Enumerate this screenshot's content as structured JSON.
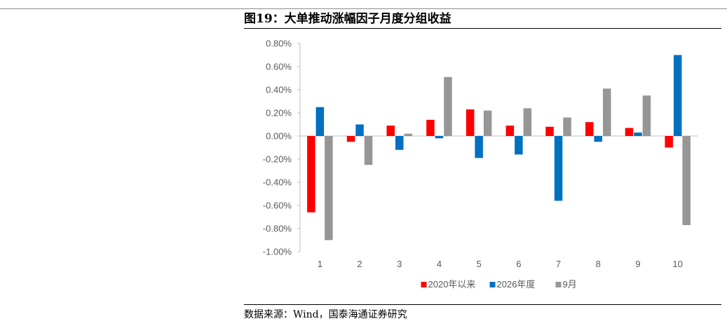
{
  "figure": {
    "title": "图19：大单推动涨幅因子月度分组收益",
    "source": "数据来源：Wind，国泰海通证券研究"
  },
  "chart_data": {
    "type": "bar",
    "categories": [
      "1",
      "2",
      "3",
      "4",
      "5",
      "6",
      "7",
      "8",
      "9",
      "10"
    ],
    "series": [
      {
        "name": "2020年以来",
        "color": "#ff0000",
        "values": [
          -0.66,
          -0.05,
          0.09,
          0.14,
          0.23,
          0.09,
          0.08,
          0.12,
          0.07,
          -0.1
        ]
      },
      {
        "name": "2026年度",
        "color": "#0070c0",
        "values": [
          0.25,
          0.1,
          -0.12,
          -0.02,
          -0.19,
          -0.16,
          -0.56,
          -0.05,
          0.03,
          0.7
        ]
      },
      {
        "name": "9月",
        "color": "#969696",
        "values": [
          -0.9,
          -0.25,
          0.02,
          0.51,
          0.22,
          0.24,
          0.16,
          0.41,
          0.35,
          -0.77
        ]
      }
    ],
    "ylim": [
      -1.0,
      0.8
    ],
    "yticks": [
      0.8,
      0.6,
      0.4,
      0.2,
      0.0,
      -0.2,
      -0.4,
      -0.6,
      -0.8,
      -1.0
    ],
    "ytick_labels": [
      "0.80%",
      "0.60%",
      "0.40%",
      "0.20%",
      "0.00%",
      "-0.20%",
      "-0.40%",
      "-0.60%",
      "-0.80%",
      "-1.00%"
    ],
    "unit": "%",
    "legend_position": "bottom",
    "grid": false
  }
}
